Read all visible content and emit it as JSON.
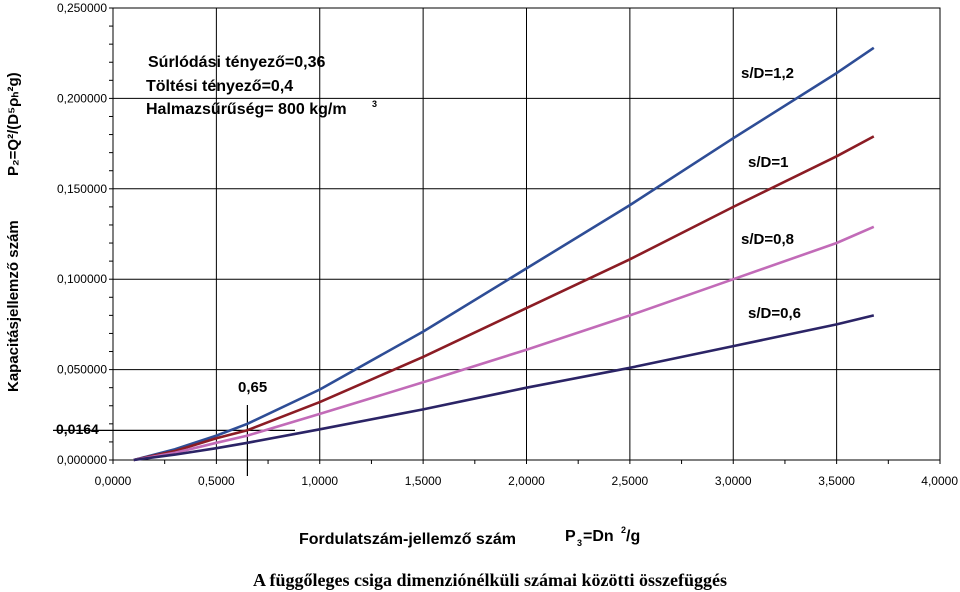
{
  "chart_data": {
    "type": "line",
    "title": "A függőleges csiga dimenziónélküli számai közötti összefüggés",
    "xlabel": "Fordulatszám-jellemző szám",
    "xlabel_symbol": {
      "base": "P",
      "sub": "3",
      "rest": "=Dn",
      "sup": "2",
      "tail": "/g"
    },
    "ylabel": "Kapacitásjellemző szám",
    "ylabel_symbol": "P₂=Q²/(D⁵ρₕ²g)",
    "xlim": [
      0,
      4
    ],
    "ylim": [
      0,
      0.25
    ],
    "x_ticks": [
      "0,0000",
      "0,5000",
      "1,0000",
      "1,5000",
      "2,0000",
      "2,5000",
      "3,0000",
      "3,5000",
      "4,0000"
    ],
    "y_ticks": [
      "0,000000",
      "0,050000",
      "0,100000",
      "0,150000",
      "0,200000",
      "0,250000"
    ],
    "grid": true,
    "annotations": {
      "lines": [
        "Súrlódási tényező=0,36",
        "Töltési tényező=0,4",
        "Halmazsűrűség= 800 kg/m"
      ],
      "density_unit_sup": "3",
      "marker_x_label": "0,65",
      "marker_y_label": "0,0164",
      "marker_x": 0.65,
      "marker_y": 0.0164
    },
    "series": [
      {
        "name": "s/D=1,2",
        "color": "#2e4d96",
        "x": [
          0.1,
          0.3,
          0.5,
          0.65,
          1.0,
          1.5,
          2.0,
          2.5,
          3.0,
          3.5,
          3.68
        ],
        "y": [
          0.0,
          0.006,
          0.0135,
          0.02,
          0.039,
          0.071,
          0.106,
          0.141,
          0.178,
          0.214,
          0.228
        ]
      },
      {
        "name": "s/D=1",
        "color": "#8b1c24",
        "x": [
          0.1,
          0.3,
          0.5,
          0.65,
          1.0,
          1.5,
          2.0,
          2.5,
          3.0,
          3.5,
          3.68
        ],
        "y": [
          0.0,
          0.005,
          0.012,
          0.0165,
          0.032,
          0.057,
          0.084,
          0.111,
          0.14,
          0.168,
          0.179
        ]
      },
      {
        "name": "s/D=0,8",
        "color": "#c26bb8",
        "x": [
          0.1,
          0.3,
          0.5,
          0.65,
          1.0,
          1.5,
          2.0,
          2.5,
          3.0,
          3.5,
          3.68
        ],
        "y": [
          0.0,
          0.004,
          0.0095,
          0.0135,
          0.0255,
          0.043,
          0.061,
          0.08,
          0.1,
          0.12,
          0.129
        ]
      },
      {
        "name": "s/D=0,6",
        "color": "#2b2466",
        "x": [
          0.1,
          0.3,
          0.5,
          0.65,
          1.0,
          1.5,
          2.0,
          2.5,
          3.0,
          3.5,
          3.68
        ],
        "y": [
          0.0,
          0.003,
          0.0065,
          0.0095,
          0.017,
          0.028,
          0.04,
          0.051,
          0.063,
          0.075,
          0.08
        ]
      }
    ]
  }
}
